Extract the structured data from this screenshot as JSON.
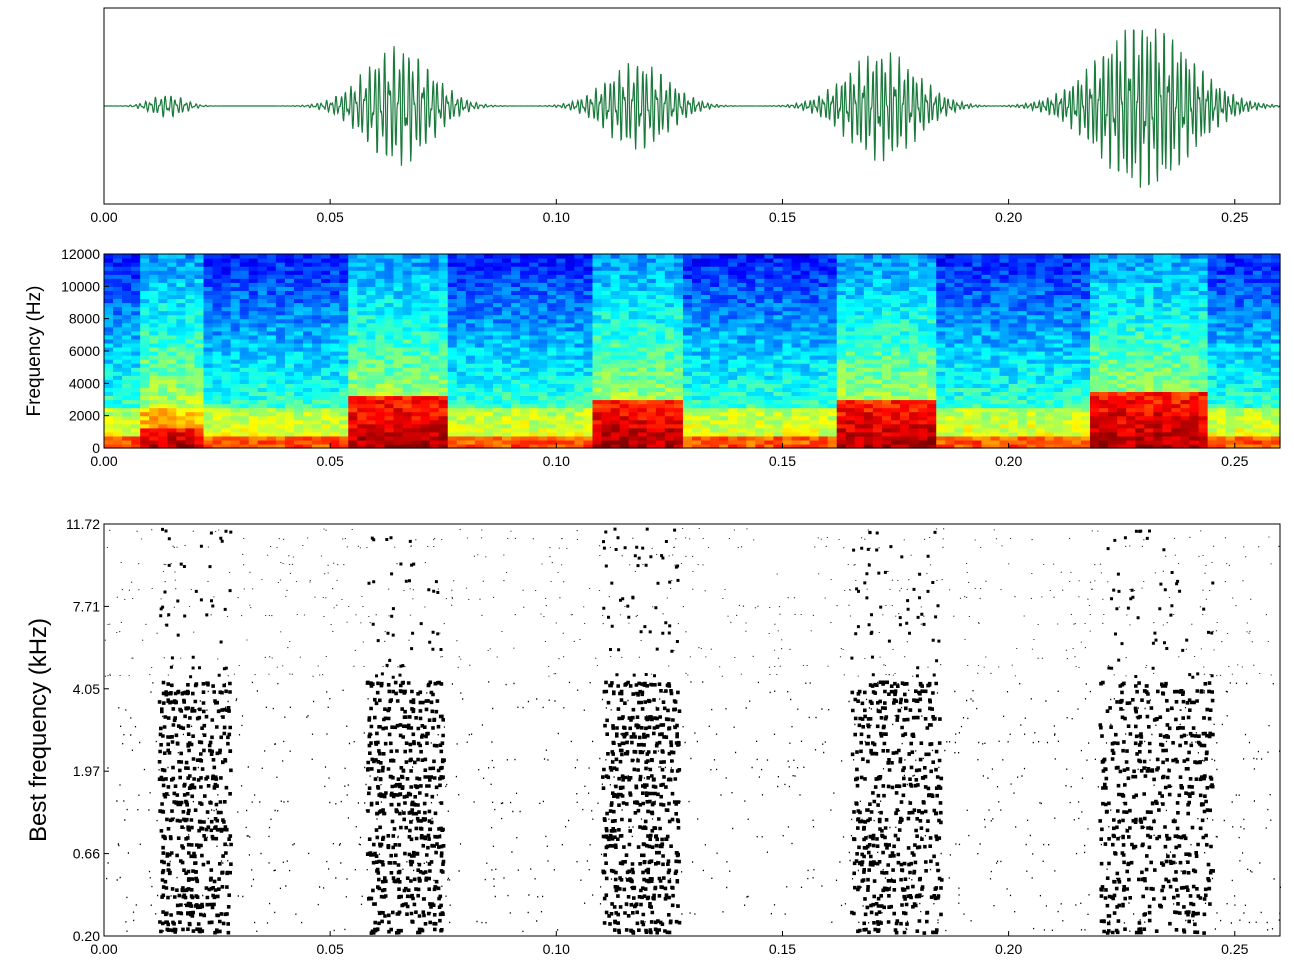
{
  "chart_data": [
    {
      "type": "line",
      "panel": "waveform",
      "xlabel": "",
      "ylabel": "",
      "xlim": [
        0.0,
        0.26
      ],
      "x_ticks": [
        "0.00",
        "0.05",
        "0.10",
        "0.15",
        "0.20",
        "0.25"
      ],
      "y_ticks": [],
      "line_color": "#1a7a3c",
      "bursts": [
        {
          "center": 0.014,
          "duration": 0.008,
          "amplitude": 0.12
        },
        {
          "center": 0.065,
          "duration": 0.016,
          "amplitude": 0.62
        },
        {
          "center": 0.118,
          "duration": 0.015,
          "amplitude": 0.46
        },
        {
          "center": 0.172,
          "duration": 0.017,
          "amplitude": 0.57
        },
        {
          "center": 0.23,
          "duration": 0.022,
          "amplitude": 0.88
        }
      ]
    },
    {
      "type": "heatmap",
      "panel": "spectrogram",
      "xlabel": "",
      "ylabel": "Frequency (Hz)",
      "xlim": [
        0.0,
        0.26
      ],
      "ylim": [
        0,
        12000
      ],
      "x_ticks": [
        "0.00",
        "0.05",
        "0.10",
        "0.15",
        "0.20",
        "0.25"
      ],
      "y_ticks": [
        "0",
        "2000",
        "4000",
        "6000",
        "8000",
        "10000",
        "12000"
      ],
      "colormap": "jet",
      "energy_segments": [
        {
          "start": 0.008,
          "end": 0.022,
          "max_freq": 1300
        },
        {
          "start": 0.055,
          "end": 0.075,
          "max_freq": 3200
        },
        {
          "start": 0.109,
          "end": 0.127,
          "max_freq": 3000
        },
        {
          "start": 0.163,
          "end": 0.183,
          "max_freq": 3000
        },
        {
          "start": 0.218,
          "end": 0.245,
          "max_freq": 3600
        }
      ]
    },
    {
      "type": "scatter",
      "panel": "raster",
      "xlabel": "",
      "ylabel": "Best frequency (kHz)",
      "xlim": [
        0.0,
        0.26
      ],
      "x_ticks": [
        "0.00",
        "0.05",
        "0.10",
        "0.15",
        "0.20",
        "0.25"
      ],
      "y_ticks": [
        "0.20",
        "0.66",
        "1.97",
        "4.05",
        "7.71",
        "11.72"
      ],
      "marker_color": "#000000",
      "response_windows": [
        {
          "start": 0.012,
          "end": 0.028
        },
        {
          "start": 0.058,
          "end": 0.075
        },
        {
          "start": 0.11,
          "end": 0.127
        },
        {
          "start": 0.165,
          "end": 0.185
        },
        {
          "start": 0.22,
          "end": 0.245
        }
      ]
    }
  ]
}
